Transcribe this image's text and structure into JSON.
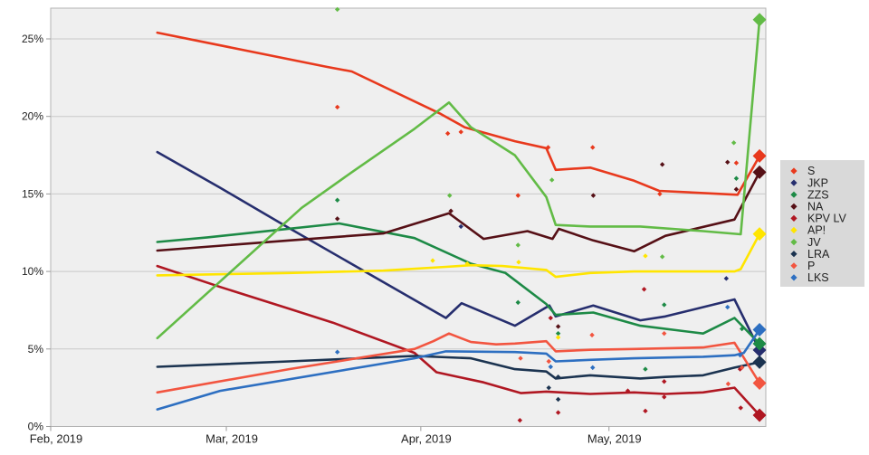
{
  "chart_data": {
    "type": "line",
    "description": "Opinion polling trend lines with individual poll markers and final result diamonds",
    "x_axis": {
      "tick_labels": [
        "Feb, 2019",
        "Mar, 2019",
        "Apr, 2019",
        "May, 2019"
      ],
      "tick_days": [
        0,
        28,
        59,
        89
      ],
      "domain_days": [
        0,
        114
      ]
    },
    "y_axis": {
      "tick_labels": [
        "0%",
        "5%",
        "10%",
        "15%",
        "20%",
        "25%"
      ],
      "tick_values": [
        0,
        5,
        10,
        15,
        20,
        25
      ],
      "max_value": 27
    },
    "grid": true,
    "legend_position": "right",
    "colors": {
      "plot_background": "#efefef",
      "legend_background": "#d9d9d9",
      "gridline": "#c8c8c8",
      "plot_border": "#b3b3b3",
      "text": "#222222"
    },
    "series": [
      {
        "name": "S",
        "color": "#e8391d",
        "trend": [
          [
            17,
            25.4
          ],
          [
            44,
            23.2
          ],
          [
            48,
            22.9
          ],
          [
            62,
            20.2
          ],
          [
            66,
            19.3
          ],
          [
            74,
            18.4
          ],
          [
            79,
            17.95
          ],
          [
            80.5,
            16.55
          ],
          [
            86,
            16.7
          ],
          [
            93,
            15.85
          ],
          [
            97,
            15.2
          ],
          [
            109.5,
            14.95
          ],
          [
            113,
            17.45
          ]
        ],
        "polls": [
          [
            45.7,
            20.6
          ],
          [
            63.3,
            18.9
          ],
          [
            65.4,
            19.0
          ],
          [
            74.5,
            14.9
          ],
          [
            79.3,
            18.0
          ],
          [
            86.4,
            18.0
          ],
          [
            97.1,
            15.0
          ],
          [
            109.3,
            17.0
          ]
        ],
        "result": [
          113,
          17.45
        ]
      },
      {
        "name": "JKP",
        "color": "#262e6e",
        "trend": [
          [
            17,
            17.7
          ],
          [
            27,
            15.4
          ],
          [
            38,
            12.8
          ],
          [
            63,
            7.0
          ],
          [
            65.5,
            7.95
          ],
          [
            74,
            6.5
          ],
          [
            79.5,
            7.8
          ],
          [
            80.5,
            7.1
          ],
          [
            86.5,
            7.8
          ],
          [
            94,
            6.85
          ],
          [
            98,
            7.1
          ],
          [
            109,
            8.2
          ],
          [
            113,
            4.93
          ]
        ],
        "polls": [
          [
            65.4,
            12.9
          ],
          [
            107.7,
            9.55
          ]
        ],
        "result": [
          113,
          4.93
        ]
      },
      {
        "name": "ZZS",
        "color": "#1d8a46",
        "trend": [
          [
            17,
            11.9
          ],
          [
            25,
            12.2
          ],
          [
            46,
            13.1
          ],
          [
            58,
            12.15
          ],
          [
            67,
            10.5
          ],
          [
            72.5,
            9.9
          ],
          [
            79,
            7.9
          ],
          [
            80.5,
            7.2
          ],
          [
            86.5,
            7.35
          ],
          [
            94,
            6.5
          ],
          [
            104,
            6.0
          ],
          [
            109,
            7.0
          ],
          [
            113,
            5.34
          ]
        ],
        "polls": [
          [
            45.7,
            14.6
          ],
          [
            74.5,
            8.0
          ],
          [
            80.9,
            6.0
          ],
          [
            94.8,
            3.7
          ],
          [
            97.8,
            7.85
          ],
          [
            109.3,
            16.0
          ],
          [
            110.2,
            6.3
          ]
        ],
        "result": [
          113,
          5.34
        ]
      },
      {
        "name": "NA",
        "color": "#561016",
        "trend": [
          [
            17,
            11.35
          ],
          [
            38,
            12.0
          ],
          [
            53,
            12.45
          ],
          [
            63.5,
            13.75
          ],
          [
            69,
            12.1
          ],
          [
            76,
            12.6
          ],
          [
            80,
            12.1
          ],
          [
            81,
            12.75
          ],
          [
            86.5,
            12.0
          ],
          [
            93,
            11.3
          ],
          [
            98,
            12.3
          ],
          [
            109,
            13.35
          ],
          [
            113,
            16.4
          ]
        ],
        "polls": [
          [
            45.7,
            13.4
          ],
          [
            63.8,
            13.9
          ],
          [
            80.9,
            6.45
          ],
          [
            86.5,
            14.9
          ],
          [
            97.5,
            16.9
          ],
          [
            107.9,
            17.05
          ],
          [
            109.3,
            15.3
          ]
        ],
        "result": [
          113,
          16.4
        ]
      },
      {
        "name": "KPV LV",
        "color": "#b01722",
        "trend": [
          [
            17,
            10.35
          ],
          [
            27,
            9.0
          ],
          [
            38,
            7.6
          ],
          [
            45,
            6.7
          ],
          [
            58,
            4.75
          ],
          [
            61.5,
            3.5
          ],
          [
            69,
            2.85
          ],
          [
            75,
            2.15
          ],
          [
            79,
            2.25
          ],
          [
            86,
            2.1
          ],
          [
            93,
            2.2
          ],
          [
            98,
            2.1
          ],
          [
            104,
            2.2
          ],
          [
            109,
            2.5
          ],
          [
            113,
            0.73
          ]
        ],
        "polls": [
          [
            74.8,
            0.4
          ],
          [
            79.7,
            7.0
          ],
          [
            80.9,
            0.9
          ],
          [
            92,
            2.3
          ],
          [
            94.6,
            8.85
          ],
          [
            94.8,
            1.0
          ],
          [
            97.8,
            2.9
          ],
          [
            97.8,
            1.9
          ],
          [
            109.9,
            3.7
          ],
          [
            110,
            1.2
          ]
        ],
        "result": [
          113,
          0.73
        ]
      },
      {
        "name": "AP!",
        "color": "#ffe500",
        "trend": [
          [
            17,
            9.75
          ],
          [
            38,
            9.9
          ],
          [
            53,
            10.05
          ],
          [
            63,
            10.3
          ],
          [
            67,
            10.4
          ],
          [
            72,
            10.35
          ],
          [
            79,
            10.1
          ],
          [
            80.5,
            9.65
          ],
          [
            86,
            9.9
          ],
          [
            93,
            10.0
          ],
          [
            109,
            10.0
          ],
          [
            110,
            10.15
          ],
          [
            113,
            12.42
          ]
        ],
        "polls": [
          [
            60.9,
            10.7
          ],
          [
            66.4,
            10.5
          ],
          [
            74.6,
            10.6
          ],
          [
            80.9,
            5.75
          ],
          [
            94.8,
            11.0
          ]
        ],
        "result": [
          113,
          12.42
        ]
      },
      {
        "name": "JV",
        "color": "#62bb46",
        "trend": [
          [
            17,
            5.7
          ],
          [
            40,
            14.1
          ],
          [
            48,
            16.4
          ],
          [
            58,
            19.2
          ],
          [
            63.5,
            20.9
          ],
          [
            67,
            19.3
          ],
          [
            74,
            17.5
          ],
          [
            79,
            14.8
          ],
          [
            80.5,
            13.0
          ],
          [
            86,
            12.9
          ],
          [
            94,
            12.9
          ],
          [
            104,
            12.6
          ],
          [
            110,
            12.4
          ],
          [
            113,
            26.24
          ]
        ],
        "polls": [
          [
            45.7,
            26.9
          ],
          [
            63.6,
            14.9
          ],
          [
            74.5,
            11.7
          ],
          [
            79.9,
            15.9
          ],
          [
            97.5,
            10.95
          ],
          [
            108.9,
            18.3
          ]
        ],
        "result": [
          113,
          26.24
        ]
      },
      {
        "name": "LRA",
        "color": "#1b3350",
        "trend": [
          [
            17,
            3.85
          ],
          [
            38,
            4.2
          ],
          [
            58,
            4.55
          ],
          [
            67,
            4.4
          ],
          [
            74,
            3.7
          ],
          [
            79,
            3.55
          ],
          [
            80.5,
            3.1
          ],
          [
            86,
            3.3
          ],
          [
            94,
            3.1
          ],
          [
            98,
            3.2
          ],
          [
            104,
            3.3
          ],
          [
            109,
            3.8
          ],
          [
            113,
            4.15
          ]
        ],
        "polls": [
          [
            79.4,
            2.5
          ],
          [
            80.9,
            1.75
          ],
          [
            80.9,
            3.2
          ]
        ],
        "result": [
          113,
          4.15
        ]
      },
      {
        "name": "P",
        "color": "#f25540",
        "trend": [
          [
            17,
            2.2
          ],
          [
            38,
            3.7
          ],
          [
            58,
            5.0
          ],
          [
            61,
            5.5
          ],
          [
            63.5,
            6.0
          ],
          [
            67,
            5.45
          ],
          [
            71,
            5.3
          ],
          [
            74,
            5.35
          ],
          [
            79,
            5.5
          ],
          [
            80.5,
            4.85
          ],
          [
            86,
            4.95
          ],
          [
            93,
            5.0
          ],
          [
            104,
            5.1
          ],
          [
            109,
            5.4
          ],
          [
            113,
            2.8
          ]
        ],
        "polls": [
          [
            74.9,
            4.4
          ],
          [
            79.4,
            4.2
          ],
          [
            86.3,
            5.9
          ],
          [
            97.8,
            6.0
          ],
          [
            108,
            2.75
          ],
          [
            110.2,
            3.8
          ]
        ],
        "result": [
          113,
          2.8
        ]
      },
      {
        "name": "LKS",
        "color": "#2d6fc1",
        "trend": [
          [
            17,
            1.1
          ],
          [
            27,
            2.3
          ],
          [
            58,
            4.4
          ],
          [
            63,
            4.85
          ],
          [
            74,
            4.8
          ],
          [
            79,
            4.7
          ],
          [
            80.5,
            4.2
          ],
          [
            86,
            4.3
          ],
          [
            93,
            4.4
          ],
          [
            104,
            4.5
          ],
          [
            109,
            4.6
          ],
          [
            110.5,
            4.75
          ],
          [
            113,
            6.24
          ]
        ],
        "polls": [
          [
            45.7,
            4.8
          ],
          [
            79.7,
            3.85
          ],
          [
            86.4,
            3.8
          ],
          [
            107.9,
            7.7
          ],
          [
            109.9,
            4.6
          ]
        ],
        "result": [
          113,
          6.24
        ]
      }
    ]
  },
  "legend": {
    "items": [
      "S",
      "JKP",
      "ZZS",
      "NA",
      "KPV LV",
      "AP!",
      "JV",
      "LRA",
      "P",
      "LKS"
    ]
  }
}
